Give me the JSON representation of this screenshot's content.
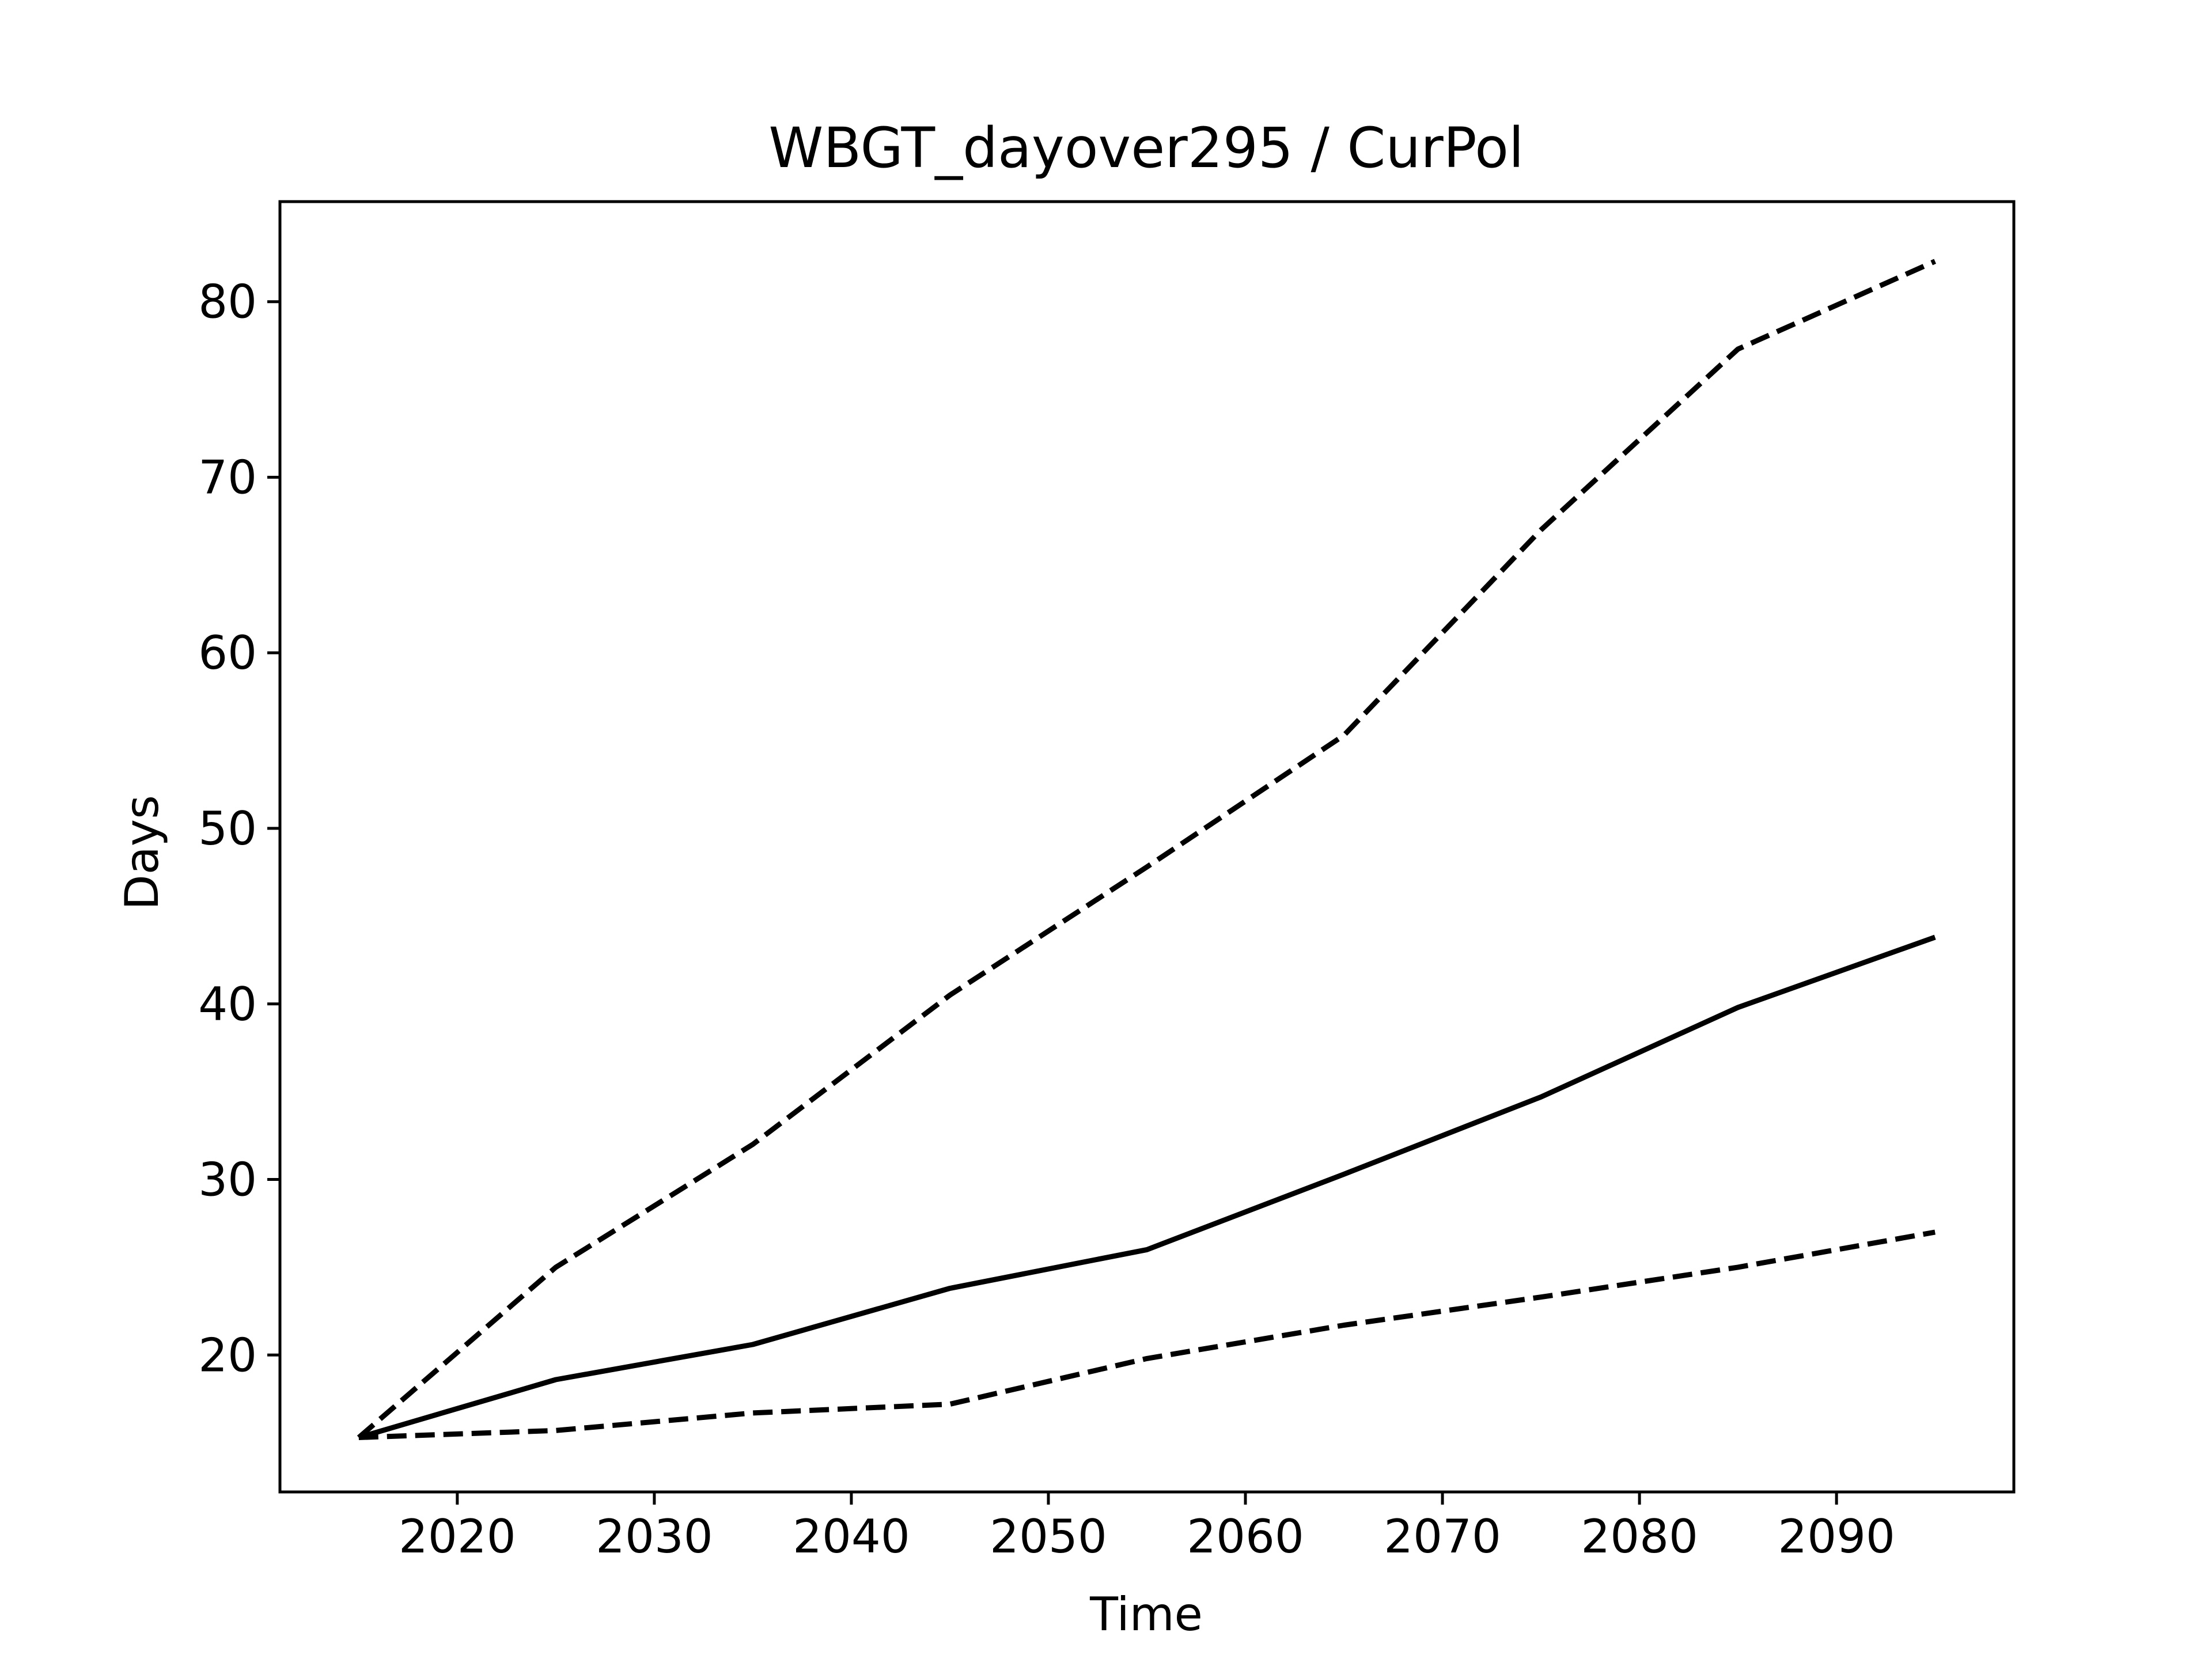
{
  "chart_data": {
    "type": "line",
    "title": "WBGT_dayover295 / CurPol",
    "xlabel": "Time",
    "ylabel": "Days",
    "xlim": [
      2011,
      2099
    ],
    "ylim": [
      12.2,
      85.7
    ],
    "xticks": [
      2020,
      2030,
      2040,
      2050,
      2060,
      2070,
      2080,
      2090
    ],
    "yticks": [
      20,
      30,
      40,
      50,
      60,
      70,
      80
    ],
    "grid": false,
    "x": [
      2015,
      2025,
      2035,
      2045,
      2055,
      2065,
      2075,
      2085,
      2095
    ],
    "series": [
      {
        "style": "dashed",
        "color": "#000000",
        "values": [
          15.3,
          25.0,
          32.0,
          40.5,
          47.8,
          55.3,
          67.0,
          77.3,
          82.3
        ]
      },
      {
        "style": "solid",
        "color": "#000000",
        "values": [
          15.3,
          18.6,
          20.6,
          23.8,
          26.0,
          30.3,
          34.7,
          39.8,
          43.8
        ]
      },
      {
        "style": "dashed",
        "color": "#000000",
        "values": [
          15.3,
          15.7,
          16.7,
          17.2,
          19.8,
          21.7,
          23.3,
          25.0,
          27.0
        ]
      }
    ]
  }
}
